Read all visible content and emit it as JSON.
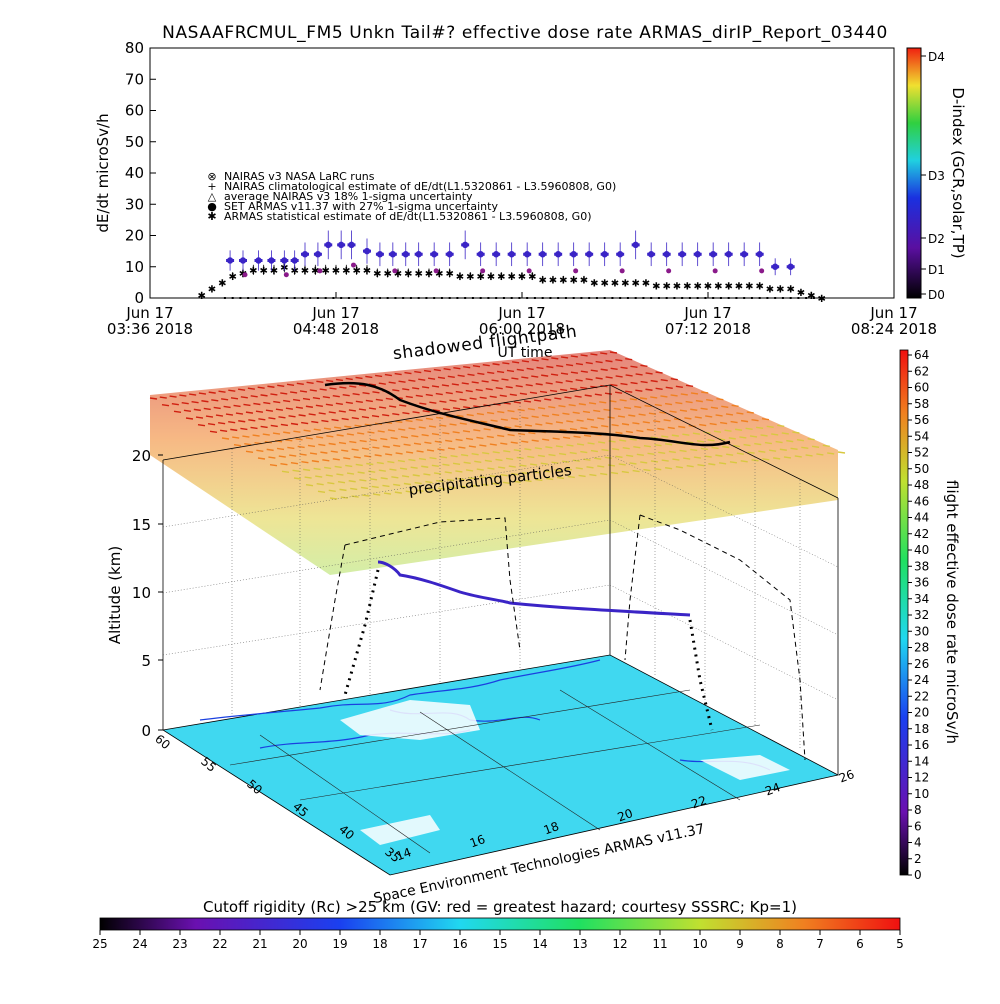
{
  "chart_data": [
    {
      "type": "scatter",
      "title": "NASAAFRCMUL_FM5 Unkn Tail#? effective dose rate ARMAS_dirIP_Report_03440",
      "ylabel": "dE/dt microSv/h",
      "xlabel": "UT time",
      "ylim": [
        0,
        80
      ],
      "yticks": [
        "0",
        "10",
        "20",
        "30",
        "40",
        "50",
        "60",
        "70",
        "80"
      ],
      "xticks": [
        {
          "top": "Jun 17",
          "bottom": "03:36 2018"
        },
        {
          "top": "Jun 17",
          "bottom": "04:48 2018"
        },
        {
          "top": "Jun 17",
          "bottom": "06:00 2018"
        },
        {
          "top": "Jun 17",
          "bottom": "07:12 2018"
        },
        {
          "top": "Jun 17",
          "bottom": "08:24 2018"
        }
      ],
      "xlim_minutes": [
        216,
        504
      ],
      "legend": [
        "NAIRAS v3 NASA LaRC runs",
        "NAIRAS climatological estimate of dE/dt(L1.5320861 - L3.5960808, G0)",
        "average NAIRAS v3 18% 1-sigma uncertainty",
        "SET ARMAS v11.37 with 27% 1-sigma uncertainty",
        "ARMAS statistical estimate of dE/dt(L1.5320861 - L3.5960808, G0)"
      ],
      "right_axis": {
        "label": "D-index (GCR,solar,TP)",
        "ticks": [
          "D0",
          "D1",
          "D2",
          "D3",
          "D4"
        ]
      },
      "series": [
        {
          "values_time_min": [
            247,
            252,
            258,
            263,
            268,
            272,
            276,
            281,
            285,
            290,
            294,
            300,
            305,
            310,
            315,
            320,
            326,
            332,
            338,
            344,
            350,
            356,
            362,
            368,
            374,
            380,
            386,
            392,
            398,
            404,
            410,
            416,
            422,
            428,
            434,
            440,
            446,
            452,
            458,
            464
          ],
          "values_dose": [
            12,
            12,
            12,
            12,
            12,
            12,
            14,
            14,
            17,
            17,
            17,
            15,
            14,
            14,
            14,
            14,
            14,
            14,
            17,
            14,
            14,
            14,
            14,
            14,
            14,
            14,
            14,
            14,
            14,
            17,
            14,
            14,
            14,
            14,
            14,
            14,
            14,
            14,
            10,
            10
          ]
        },
        {
          "values_time_min": [
            236,
            240,
            244,
            248,
            252,
            256,
            260,
            264,
            268,
            272,
            276,
            280,
            284,
            288,
            292,
            296,
            300,
            304,
            308,
            312,
            316,
            320,
            324,
            328,
            332,
            336,
            340,
            344,
            348,
            352,
            356,
            360,
            364,
            368,
            372,
            376,
            380,
            384,
            388,
            392,
            396,
            400,
            404,
            408,
            412,
            416,
            420,
            424,
            428,
            432,
            436,
            440,
            444,
            448,
            452,
            456,
            460,
            464,
            468,
            472,
            476
          ],
          "values_dose": [
            1,
            3,
            5,
            7,
            8,
            9,
            9,
            9,
            10,
            9,
            9,
            9,
            9,
            9,
            9,
            9,
            9,
            8,
            8,
            8,
            8,
            8,
            8,
            8,
            8,
            7,
            7,
            7,
            7,
            7,
            7,
            7,
            7,
            6,
            6,
            6,
            6,
            6,
            5,
            5,
            5,
            5,
            5,
            5,
            4,
            4,
            4,
            4,
            4,
            4,
            4,
            4,
            4,
            4,
            4,
            3,
            3,
            3,
            2,
            1,
            0
          ]
        }
      ],
      "colors": {
        "armas": "#3a24c6",
        "nairas": "#000000",
        "purple": "#8a1a8a"
      }
    },
    {
      "type": "3d-scatter",
      "title": "shadowed flightpath",
      "annotation": "precipitating particles",
      "zlabel": "Altitude (km)",
      "zticks": [
        "0",
        "5",
        "10",
        "15",
        "20"
      ],
      "lat_ticks": [
        "60",
        "55",
        "50",
        "45",
        "40",
        "35"
      ],
      "lon_ticks": [
        "14",
        "16",
        "18",
        "20",
        "22",
        "24",
        "26"
      ],
      "footer": "Space Environment Technologies ARMAS v11.37",
      "colorbar_right": {
        "label": "flight effective dose rate microSv/h",
        "ticks": [
          "0",
          "2",
          "4",
          "6",
          "8",
          "10",
          "12",
          "14",
          "16",
          "18",
          "20",
          "22",
          "24",
          "26",
          "28",
          "30",
          "32",
          "34",
          "36",
          "38",
          "40",
          "42",
          "44",
          "46",
          "48",
          "50",
          "52",
          "54",
          "56",
          "58",
          "60",
          "62",
          "64"
        ]
      },
      "colorbar_bottom": {
        "label": "Cutoff rigidity (Rc) >25 km (GV: red = greatest hazard; courtesy SSSRC; Kp=1)",
        "ticks": [
          "25",
          "24",
          "23",
          "22",
          "21",
          "20",
          "19",
          "18",
          "17",
          "16",
          "15",
          "14",
          "13",
          "12",
          "11",
          "10",
          "9",
          "8",
          "7",
          "6",
          "5"
        ]
      }
    }
  ]
}
